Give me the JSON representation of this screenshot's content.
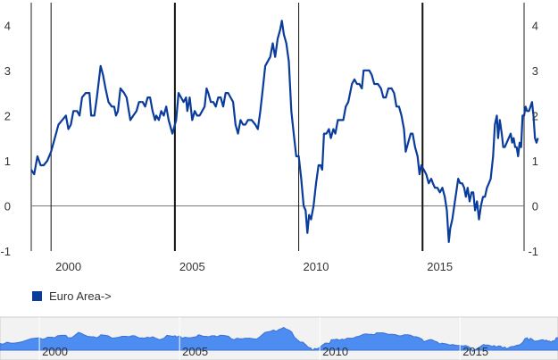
{
  "chart_data": {
    "type": "line",
    "title": "",
    "xlabel": "",
    "ylabel": "",
    "ylim": [
      -1,
      4.5
    ],
    "xlim": [
      1998.5,
      2018.4
    ],
    "y_ticks": [
      "4",
      "3",
      "2",
      "1",
      "0",
      "-1"
    ],
    "x_ticks": [
      "2000",
      "2005",
      "2010",
      "2015"
    ],
    "legend": "bottom-left",
    "series": [
      {
        "name": "Euro Area->",
        "color": "#0a3c9c",
        "points": [
          [
            1998.5,
            0.8
          ],
          [
            1998.62,
            0.7
          ],
          [
            1998.75,
            1.1
          ],
          [
            1998.88,
            0.9
          ],
          [
            1999.0,
            0.9
          ],
          [
            1999.15,
            1.0
          ],
          [
            1999.3,
            1.2
          ],
          [
            1999.45,
            1.5
          ],
          [
            1999.6,
            1.8
          ],
          [
            1999.75,
            1.9
          ],
          [
            1999.9,
            2.0
          ],
          [
            2000.0,
            1.7
          ],
          [
            2000.1,
            1.8
          ],
          [
            2000.2,
            2.1
          ],
          [
            2000.35,
            2.1
          ],
          [
            2000.45,
            2.0
          ],
          [
            2000.55,
            2.4
          ],
          [
            2000.7,
            2.5
          ],
          [
            2000.85,
            2.5
          ],
          [
            2000.92,
            2.0
          ],
          [
            2001.05,
            2.0
          ],
          [
            2001.15,
            2.4
          ],
          [
            2001.3,
            3.1
          ],
          [
            2001.4,
            2.9
          ],
          [
            2001.5,
            2.6
          ],
          [
            2001.62,
            2.3
          ],
          [
            2001.75,
            2.2
          ],
          [
            2001.85,
            2.2
          ],
          [
            2001.92,
            2.0
          ],
          [
            2002.0,
            2.1
          ],
          [
            2002.1,
            2.6
          ],
          [
            2002.25,
            2.5
          ],
          [
            2002.35,
            2.4
          ],
          [
            2002.5,
            1.9
          ],
          [
            2002.62,
            2.0
          ],
          [
            2002.75,
            2.1
          ],
          [
            2002.85,
            2.3
          ],
          [
            2003.0,
            2.3
          ],
          [
            2003.1,
            2.2
          ],
          [
            2003.2,
            2.4
          ],
          [
            2003.3,
            2.4
          ],
          [
            2003.4,
            2.1
          ],
          [
            2003.5,
            1.9
          ],
          [
            2003.55,
            2.0
          ],
          [
            2003.65,
            1.9
          ],
          [
            2003.75,
            2.1
          ],
          [
            2003.85,
            2.0
          ],
          [
            2003.95,
            2.2
          ],
          [
            2004.05,
            1.9
          ],
          [
            2004.2,
            1.6
          ],
          [
            2004.35,
            1.9
          ],
          [
            2004.45,
            2.5
          ],
          [
            2004.55,
            2.4
          ],
          [
            2004.65,
            2.3
          ],
          [
            2004.75,
            2.4
          ],
          [
            2004.8,
            2.1
          ],
          [
            2004.9,
            2.4
          ],
          [
            2005.0,
            1.9
          ],
          [
            2005.1,
            2.1
          ],
          [
            2005.2,
            2.0
          ],
          [
            2005.3,
            2.0
          ],
          [
            2005.4,
            2.1
          ],
          [
            2005.5,
            2.2
          ],
          [
            2005.58,
            2.6
          ],
          [
            2005.65,
            2.5
          ],
          [
            2005.75,
            2.3
          ],
          [
            2005.85,
            2.3
          ],
          [
            2005.95,
            2.2
          ],
          [
            2006.05,
            2.4
          ],
          [
            2006.15,
            2.4
          ],
          [
            2006.25,
            2.2
          ],
          [
            2006.35,
            2.5
          ],
          [
            2006.45,
            2.5
          ],
          [
            2006.55,
            2.4
          ],
          [
            2006.65,
            2.3
          ],
          [
            2006.75,
            1.8
          ],
          [
            2006.85,
            1.6
          ],
          [
            2006.95,
            1.9
          ],
          [
            2007.05,
            1.8
          ],
          [
            2007.15,
            1.8
          ],
          [
            2007.25,
            1.9
          ],
          [
            2007.4,
            1.9
          ],
          [
            2007.55,
            1.8
          ],
          [
            2007.65,
            1.7
          ],
          [
            2007.75,
            2.1
          ],
          [
            2007.85,
            2.6
          ],
          [
            2007.95,
            3.1
          ],
          [
            2008.05,
            3.2
          ],
          [
            2008.15,
            3.3
          ],
          [
            2008.25,
            3.6
          ],
          [
            2008.35,
            3.3
          ],
          [
            2008.45,
            3.7
          ],
          [
            2008.55,
            3.9
          ],
          [
            2008.62,
            4.1
          ],
          [
            2008.7,
            3.8
          ],
          [
            2008.8,
            3.6
          ],
          [
            2008.9,
            3.2
          ],
          [
            2009.0,
            2.1
          ],
          [
            2009.1,
            1.6
          ],
          [
            2009.2,
            1.1
          ],
          [
            2009.3,
            1.1
          ],
          [
            2009.4,
            0.6
          ],
          [
            2009.5,
            0.0
          ],
          [
            2009.58,
            -0.1
          ],
          [
            2009.65,
            -0.6
          ],
          [
            2009.72,
            -0.2
          ],
          [
            2009.8,
            -0.3
          ],
          [
            2009.9,
            0.0
          ],
          [
            2010.0,
            0.5
          ],
          [
            2010.1,
            0.9
          ],
          [
            2010.18,
            0.9
          ],
          [
            2010.25,
            0.8
          ],
          [
            2010.32,
            1.6
          ],
          [
            2010.42,
            1.6
          ],
          [
            2010.52,
            1.7
          ],
          [
            2010.6,
            1.5
          ],
          [
            2010.7,
            1.7
          ],
          [
            2010.78,
            1.6
          ],
          [
            2010.88,
            1.9
          ],
          [
            2011.0,
            1.9
          ],
          [
            2011.1,
            1.9
          ],
          [
            2011.2,
            2.2
          ],
          [
            2011.3,
            2.3
          ],
          [
            2011.45,
            2.7
          ],
          [
            2011.55,
            2.8
          ],
          [
            2011.65,
            2.7
          ],
          [
            2011.75,
            2.7
          ],
          [
            2011.85,
            2.6
          ],
          [
            2011.92,
            3.0
          ],
          [
            2012.05,
            3.0
          ],
          [
            2012.15,
            3.0
          ],
          [
            2012.25,
            2.9
          ],
          [
            2012.35,
            2.7
          ],
          [
            2012.5,
            2.7
          ],
          [
            2012.62,
            2.6
          ],
          [
            2012.72,
            2.4
          ],
          [
            2012.82,
            2.4
          ],
          [
            2012.92,
            2.6
          ],
          [
            2013.05,
            2.6
          ],
          [
            2013.15,
            2.5
          ],
          [
            2013.25,
            2.2
          ],
          [
            2013.35,
            2.2
          ],
          [
            2013.45,
            2.0
          ],
          [
            2013.55,
            1.7
          ],
          [
            2013.62,
            1.2
          ],
          [
            2013.72,
            1.4
          ],
          [
            2013.82,
            1.6
          ],
          [
            2013.9,
            1.6
          ],
          [
            2014.0,
            1.3
          ],
          [
            2014.1,
            1.1
          ],
          [
            2014.18,
            0.7
          ],
          [
            2014.25,
            0.9
          ],
          [
            2014.35,
            0.8
          ],
          [
            2014.45,
            0.7
          ],
          [
            2014.55,
            0.5
          ],
          [
            2014.65,
            0.6
          ],
          [
            2014.72,
            0.5
          ],
          [
            2014.8,
            0.4
          ],
          [
            2014.9,
            0.4
          ],
          [
            2015.0,
            0.3
          ],
          [
            2015.1,
            0.4
          ],
          [
            2015.2,
            0.2
          ],
          [
            2015.28,
            -0.1
          ],
          [
            2015.36,
            -0.8
          ],
          [
            2015.42,
            -0.5
          ],
          [
            2015.5,
            -0.3
          ],
          [
            2015.58,
            0.0
          ],
          [
            2015.66,
            0.3
          ],
          [
            2015.74,
            0.6
          ],
          [
            2015.82,
            0.5
          ],
          [
            2015.9,
            0.5
          ],
          [
            2015.98,
            0.4
          ],
          [
            2016.05,
            0.2
          ],
          [
            2016.12,
            0.4
          ],
          [
            2016.2,
            0.1
          ],
          [
            2016.28,
            0.3
          ],
          [
            2016.35,
            0.3
          ],
          [
            2016.42,
            -0.1
          ],
          [
            2016.5,
            0.1
          ],
          [
            2016.58,
            -0.3
          ],
          [
            2016.66,
            0.0
          ],
          [
            2016.74,
            0.2
          ],
          [
            2016.82,
            0.2
          ],
          [
            2016.9,
            0.4
          ],
          [
            2016.98,
            0.5
          ],
          [
            2017.05,
            0.6
          ],
          [
            2017.15,
            1.1
          ],
          [
            2017.22,
            1.8
          ],
          [
            2017.3,
            2.0
          ],
          [
            2017.35,
            1.5
          ],
          [
            2017.42,
            1.9
          ],
          [
            2017.5,
            1.6
          ],
          [
            2017.56,
            1.3
          ],
          [
            2017.62,
            1.3
          ],
          [
            2017.7,
            1.4
          ],
          [
            2017.78,
            1.5
          ],
          [
            2017.86,
            1.6
          ],
          [
            2017.92,
            1.4
          ],
          [
            2017.98,
            1.5
          ],
          [
            2018.04,
            1.3
          ],
          [
            2018.1,
            1.3
          ],
          [
            2018.16,
            1.1
          ],
          [
            2018.22,
            1.4
          ],
          [
            2018.28,
            1.3
          ],
          [
            2018.34,
            2.0
          ],
          [
            2018.4,
            2.0
          ],
          [
            2018.46,
            2.2
          ],
          [
            2018.52,
            2.1
          ],
          [
            2018.6,
            2.1
          ],
          [
            2018.66,
            2.2
          ],
          [
            2018.72,
            2.3
          ],
          [
            2018.78,
            2.0
          ],
          [
            2018.84,
            1.5
          ],
          [
            2018.9,
            1.4
          ],
          [
            2018.96,
            1.5
          ]
        ]
      }
    ]
  },
  "navigator": {
    "ticks": [
      "2000",
      "2005",
      "2010",
      "2015"
    ],
    "fill_color": "#4d8cf0"
  }
}
